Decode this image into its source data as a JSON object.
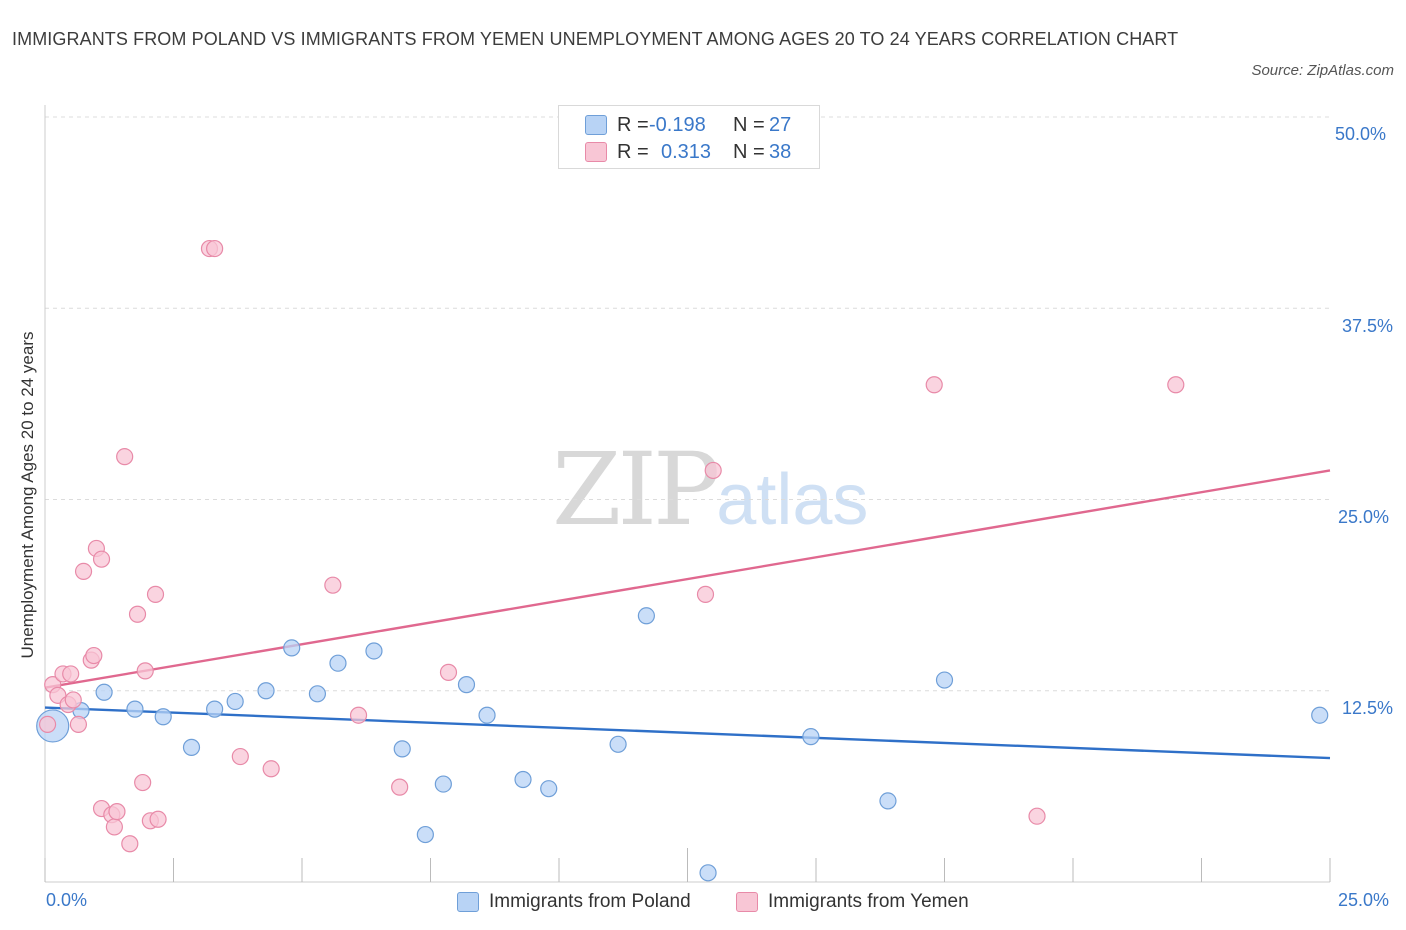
{
  "title": "IMMIGRANTS FROM POLAND VS IMMIGRANTS FROM YEMEN UNEMPLOYMENT AMONG AGES 20 TO 24 YEARS CORRELATION CHART",
  "source": "Source: ZipAtlas.com",
  "watermark": {
    "zip": "ZIP",
    "atlas": "atlas"
  },
  "legend": {
    "poland": {
      "r_label": "R =",
      "r_value": "-0.198",
      "n_label": "N =",
      "n_value": "27"
    },
    "yemen": {
      "r_label": "R =",
      "r_value": "0.313",
      "n_label": "N =",
      "n_value": "38"
    }
  },
  "bottom_legend": {
    "poland": "Immigrants from Poland",
    "yemen": "Immigrants from Yemen"
  },
  "colors": {
    "poland_fill": "#b8d3f5",
    "poland_stroke": "#6f9fd8",
    "poland_line": "#2f70c8",
    "yemen_fill": "#f8c6d5",
    "yemen_stroke": "#e88aa8",
    "yemen_line": "#e0688f",
    "grid": "#dcdcdc",
    "tick_text": "#3a78c9"
  },
  "chart_data": {
    "type": "scatter",
    "title": "IMMIGRANTS FROM POLAND VS IMMIGRANTS FROM YEMEN UNEMPLOYMENT AMONG AGES 20 TO 24 YEARS CORRELATION CHART",
    "xlabel": "",
    "ylabel": "Unemployment Among Ages 20 to 24 years",
    "xlim": [
      0,
      25
    ],
    "ylim": [
      0,
      50
    ],
    "x_tick_labels": {
      "min": "0.0%",
      "max": "25.0%"
    },
    "y_ticks": [
      12.5,
      25.0,
      37.5,
      50.0
    ],
    "y_tick_labels": [
      "12.5%",
      "25.0%",
      "37.5%",
      "50.0%"
    ],
    "series": [
      {
        "name": "Immigrants from Poland",
        "key": "poland",
        "points": [
          {
            "x": 0.15,
            "y": 10.2,
            "big": true
          },
          {
            "x": 0.7,
            "y": 11.2
          },
          {
            "x": 1.15,
            "y": 12.4
          },
          {
            "x": 1.75,
            "y": 11.3
          },
          {
            "x": 2.3,
            "y": 10.8
          },
          {
            "x": 2.85,
            "y": 8.8
          },
          {
            "x": 3.3,
            "y": 11.3
          },
          {
            "x": 3.7,
            "y": 11.8
          },
          {
            "x": 4.3,
            "y": 12.5
          },
          {
            "x": 4.8,
            "y": 15.3
          },
          {
            "x": 5.3,
            "y": 12.3
          },
          {
            "x": 5.7,
            "y": 14.3
          },
          {
            "x": 6.4,
            "y": 15.1
          },
          {
            "x": 6.95,
            "y": 8.7
          },
          {
            "x": 7.4,
            "y": 3.1
          },
          {
            "x": 7.75,
            "y": 6.4
          },
          {
            "x": 8.2,
            "y": 12.9
          },
          {
            "x": 8.6,
            "y": 10.9
          },
          {
            "x": 9.3,
            "y": 6.7
          },
          {
            "x": 9.8,
            "y": 6.1
          },
          {
            "x": 11.15,
            "y": 9.0
          },
          {
            "x": 11.7,
            "y": 17.4
          },
          {
            "x": 12.9,
            "y": 0.6
          },
          {
            "x": 14.9,
            "y": 9.5
          },
          {
            "x": 16.4,
            "y": 5.3
          },
          {
            "x": 17.5,
            "y": 13.2
          },
          {
            "x": 24.8,
            "y": 10.9
          }
        ],
        "trend": {
          "x0": 0,
          "y0": 11.4,
          "x1": 25,
          "y1": 8.1
        }
      },
      {
        "name": "Immigrants from Yemen",
        "key": "yemen",
        "points": [
          {
            "x": 0.05,
            "y": 10.3
          },
          {
            "x": 0.15,
            "y": 12.9
          },
          {
            "x": 0.25,
            "y": 12.2
          },
          {
            "x": 0.35,
            "y": 13.6
          },
          {
            "x": 0.45,
            "y": 11.6
          },
          {
            "x": 0.5,
            "y": 13.6
          },
          {
            "x": 0.55,
            "y": 11.9
          },
          {
            "x": 0.65,
            "y": 10.3
          },
          {
            "x": 0.75,
            "y": 20.3
          },
          {
            "x": 0.9,
            "y": 14.5
          },
          {
            "x": 0.95,
            "y": 14.8
          },
          {
            "x": 1.0,
            "y": 21.8
          },
          {
            "x": 1.1,
            "y": 21.1
          },
          {
            "x": 1.1,
            "y": 4.8
          },
          {
            "x": 1.3,
            "y": 4.4
          },
          {
            "x": 1.35,
            "y": 3.6
          },
          {
            "x": 1.4,
            "y": 4.6
          },
          {
            "x": 1.55,
            "y": 27.8
          },
          {
            "x": 1.65,
            "y": 2.5
          },
          {
            "x": 1.8,
            "y": 17.5
          },
          {
            "x": 1.9,
            "y": 6.5
          },
          {
            "x": 1.95,
            "y": 13.8
          },
          {
            "x": 2.05,
            "y": 4.0
          },
          {
            "x": 2.15,
            "y": 18.8
          },
          {
            "x": 2.2,
            "y": 4.1
          },
          {
            "x": 3.2,
            "y": 41.4
          },
          {
            "x": 3.3,
            "y": 41.4
          },
          {
            "x": 3.8,
            "y": 8.2
          },
          {
            "x": 4.4,
            "y": 7.4
          },
          {
            "x": 5.6,
            "y": 19.4
          },
          {
            "x": 6.1,
            "y": 10.9
          },
          {
            "x": 6.9,
            "y": 6.2
          },
          {
            "x": 7.85,
            "y": 13.7
          },
          {
            "x": 12.85,
            "y": 18.8
          },
          {
            "x": 13.0,
            "y": 26.9
          },
          {
            "x": 17.3,
            "y": 32.5
          },
          {
            "x": 19.3,
            "y": 4.3
          },
          {
            "x": 22.0,
            "y": 32.5
          }
        ],
        "trend": {
          "x0": 0,
          "y0": 12.7,
          "x1": 25,
          "y1": 26.9
        }
      }
    ]
  }
}
